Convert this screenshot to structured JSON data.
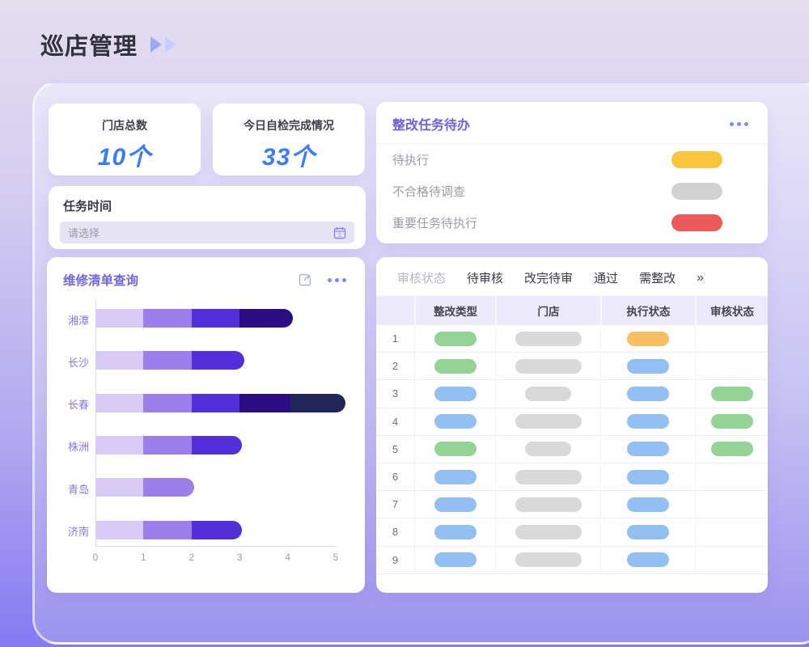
{
  "page": {
    "title": "巡店管理"
  },
  "colors": {
    "accent_blue": "#3D7BF7",
    "title_purple": "#6A62DE",
    "background_top": "#E4DEF1",
    "background_bottom": "#8679F3"
  },
  "stats": [
    {
      "label": "门店总数",
      "value": "10个"
    },
    {
      "label": "今日自检完成情况",
      "value": "33个"
    }
  ],
  "task_time": {
    "label": "任务时间",
    "placeholder": "请选择",
    "icon": "calendar-icon"
  },
  "todo": {
    "title": "整改任务待办",
    "more_icon": "ellipsis-icon",
    "items": [
      {
        "label": "待执行",
        "pill_color": "#FBC53D"
      },
      {
        "label": "不合格待调查",
        "pill_color": "#D2D2D2"
      },
      {
        "label": "重要任务待执行",
        "pill_color": "#EE5A5C"
      }
    ]
  },
  "repair_query": {
    "title": "维修清单查询",
    "icons": [
      "share-icon",
      "ellipsis-icon"
    ],
    "chart_data": {
      "type": "bar",
      "orientation": "horizontal",
      "stacked": true,
      "title": "维修清单查询",
      "categories": [
        "湘潭",
        "长沙",
        "长春",
        "株洲",
        "青岛",
        "济南"
      ],
      "series": [
        {
          "name": "segment-1",
          "color": "#D8CCF7",
          "values": [
            1,
            1,
            1,
            1,
            1,
            1
          ]
        },
        {
          "name": "segment-2",
          "color": "#9B7EE9",
          "values": [
            1,
            1,
            1,
            1,
            1.05,
            1
          ]
        },
        {
          "name": "segment-3",
          "color": "#5230D9",
          "values": [
            1,
            1.1,
            1,
            1.05,
            0,
            1.05
          ]
        },
        {
          "name": "segment-4",
          "color": "#2B0E86",
          "values": [
            1.1,
            0,
            1.05,
            0,
            0,
            0
          ]
        },
        {
          "name": "segment-5",
          "color": "#20255A",
          "values": [
            0,
            0,
            1.15,
            0,
            0,
            0
          ]
        }
      ],
      "totals": [
        4.1,
        3.1,
        5.2,
        3.05,
        2.05,
        3.05
      ],
      "xlim": [
        0,
        5
      ],
      "x_ticks": [
        0,
        1,
        2,
        3,
        4,
        5
      ],
      "grid": false,
      "legend": false
    }
  },
  "review_table": {
    "filter_label": "审核状态",
    "tabs": [
      {
        "label": "待审核"
      },
      {
        "label": "改完待审"
      },
      {
        "label": "通过"
      },
      {
        "label": "需整改"
      }
    ],
    "more_symbol": "»",
    "columns": [
      "整改类型",
      "门店",
      "执行状态",
      "审核状态"
    ],
    "pill_colors": {
      "green": "#93D396",
      "blue": "#92C0F3",
      "orange": "#F6BF63",
      "gray": "#D9D9D9"
    },
    "rows": [
      {
        "num": "1",
        "type": "green",
        "store": "wide",
        "exec": "orange",
        "review": null
      },
      {
        "num": "2",
        "type": "green",
        "store": "wide",
        "exec": "blue",
        "review": null
      },
      {
        "num": "3",
        "type": "blue",
        "store": "narrow",
        "exec": "blue",
        "review": "green"
      },
      {
        "num": "4",
        "type": "blue",
        "store": "wide",
        "exec": "blue",
        "review": "green"
      },
      {
        "num": "5",
        "type": "green",
        "store": "narrow",
        "exec": "blue",
        "review": "green"
      },
      {
        "num": "6",
        "type": "blue",
        "store": "wide",
        "exec": "blue",
        "review": null
      },
      {
        "num": "7",
        "type": "blue",
        "store": "wide",
        "exec": "blue",
        "review": null
      },
      {
        "num": "8",
        "type": "blue",
        "store": "wide",
        "exec": "blue",
        "review": null
      },
      {
        "num": "9",
        "type": "blue",
        "store": "wide",
        "exec": "blue",
        "review": null
      }
    ]
  }
}
